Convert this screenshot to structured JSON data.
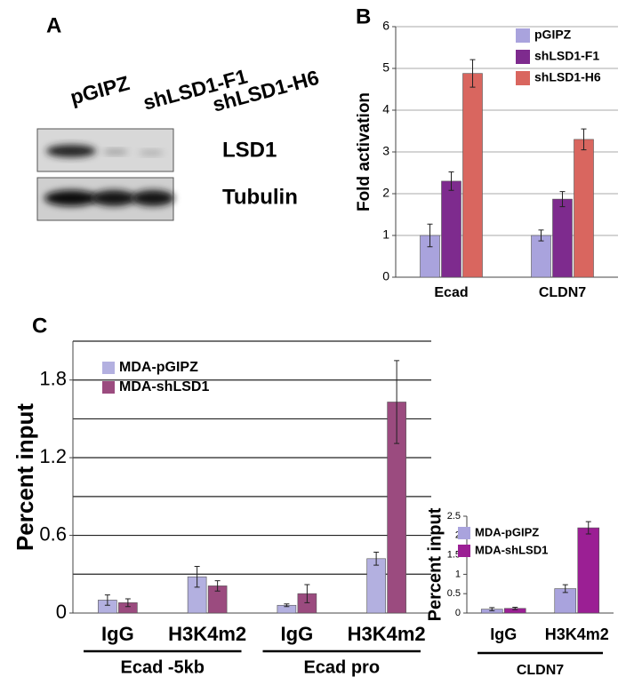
{
  "blot": {
    "label": "A",
    "lanes": [
      "pGIPZ",
      "shLSD1-F1",
      "shLSD1-H6"
    ],
    "rows": [
      "LSD1",
      "Tubulin"
    ]
  },
  "chart_data": [
    {
      "type": "bar",
      "label": "B",
      "y_label": "Fold activation",
      "categories": [
        "Ecad",
        "CLDN7"
      ],
      "series": [
        {
          "name": "pGIPZ",
          "color": "#a9a3dd",
          "values": [
            1,
            1
          ],
          "errors": [
            0.27,
            0.13
          ]
        },
        {
          "name": "shLSD1-F1",
          "color": "#7e2b8e",
          "values": [
            2.3,
            1.87
          ],
          "errors": [
            0.22,
            0.18
          ]
        },
        {
          "name": "shLSD1-H6",
          "color": "#d9665f",
          "values": [
            4.88,
            3.3
          ],
          "errors": [
            0.33,
            0.25
          ]
        }
      ],
      "ylim": [
        0,
        6
      ],
      "yticks": [
        0,
        1,
        2,
        3,
        4,
        5,
        6
      ],
      "grid": true,
      "legend": "top-right"
    },
    {
      "type": "bar",
      "label": "C",
      "y_label": "Percent input",
      "categories": [
        "IgG",
        "H3K4m2",
        "IgG",
        "H3K4m2"
      ],
      "groups": [
        "Ecad -5kb",
        "Ecad pro"
      ],
      "series": [
        {
          "name": "MDA-pGIPZ",
          "color": "#b3b0e0",
          "values": [
            0.1,
            0.28,
            0.06,
            0.42
          ],
          "errors": [
            0.04,
            0.08,
            0.01,
            0.05
          ]
        },
        {
          "name": "MDA-shLSD1",
          "color": "#9b4b7f",
          "values": [
            0.08,
            0.21,
            0.15,
            1.63
          ],
          "errors": [
            0.03,
            0.04,
            0.07,
            0.32
          ]
        }
      ],
      "ylim": [
        0,
        2.1
      ],
      "yticks": [
        0,
        0.6,
        1.2,
        1.8
      ],
      "grid": true,
      "ygrid": [
        0.3,
        0.6,
        0.9,
        1.2,
        1.5,
        1.8,
        2.1
      ],
      "legend": "top-left"
    },
    {
      "type": "bar",
      "y_label": "Percent input",
      "categories": [
        "IgG",
        "H3K4m2"
      ],
      "groups": [
        "CLDN7"
      ],
      "series": [
        {
          "name": "MDA-pGIPZ",
          "color": "#a9a3dd",
          "values": [
            0.1,
            0.63
          ],
          "errors": [
            0.04,
            0.1
          ]
        },
        {
          "name": "MDA-shLSD1",
          "color": "#9b1f94",
          "values": [
            0.12,
            2.2
          ],
          "errors": [
            0.03,
            0.16
          ]
        }
      ],
      "ylim": [
        0,
        2.5
      ],
      "yticks": [
        0,
        0.5,
        1,
        1.5,
        2,
        2.5
      ],
      "grid": false,
      "legend": "top-left"
    }
  ]
}
